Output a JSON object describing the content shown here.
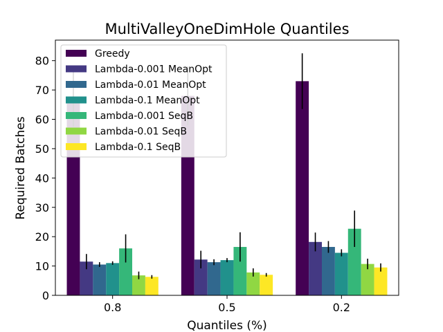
{
  "chart_data": {
    "type": "bar",
    "title": "MultiValleyOneDimHole Quantiles",
    "xlabel": "Quantiles (%)",
    "ylabel": "Required Batches",
    "categories": [
      "0.8",
      "0.5",
      "0.2"
    ],
    "ylim": [
      0,
      87
    ],
    "yticks": [
      0,
      10,
      20,
      30,
      40,
      50,
      60,
      70,
      80
    ],
    "grid": false,
    "legend_position": "top-left",
    "series": [
      {
        "name": "Greedy",
        "color": "#440154",
        "values": [
          67.5,
          68.0,
          73.0
        ],
        "errors": [
          10.0,
          10.0,
          9.5
        ]
      },
      {
        "name": "Lambda-0.001 MeanOpt",
        "color": "#443983",
        "values": [
          11.5,
          12.2,
          18.2
        ],
        "errors": [
          2.6,
          3.0,
          3.2
        ]
      },
      {
        "name": "Lambda-0.01 MeanOpt",
        "color": "#31688e",
        "values": [
          10.5,
          11.3,
          16.5
        ],
        "errors": [
          0.8,
          1.0,
          2.0
        ]
      },
      {
        "name": "Lambda-0.1 MeanOpt",
        "color": "#21918c",
        "values": [
          11.0,
          12.0,
          14.5
        ],
        "errors": [
          0.6,
          0.7,
          1.2
        ]
      },
      {
        "name": "Lambda-0.001 SeqB",
        "color": "#35b779",
        "values": [
          16.0,
          16.5,
          22.7
        ],
        "errors": [
          4.8,
          5.0,
          6.2
        ]
      },
      {
        "name": "Lambda-0.01 SeqB",
        "color": "#90d743",
        "values": [
          6.8,
          7.8,
          10.7
        ],
        "errors": [
          1.3,
          1.4,
          1.8
        ]
      },
      {
        "name": "Lambda-0.1 SeqB",
        "color": "#fde725",
        "values": [
          6.3,
          7.0,
          9.5
        ],
        "errors": [
          0.6,
          0.6,
          1.4
        ]
      }
    ]
  }
}
